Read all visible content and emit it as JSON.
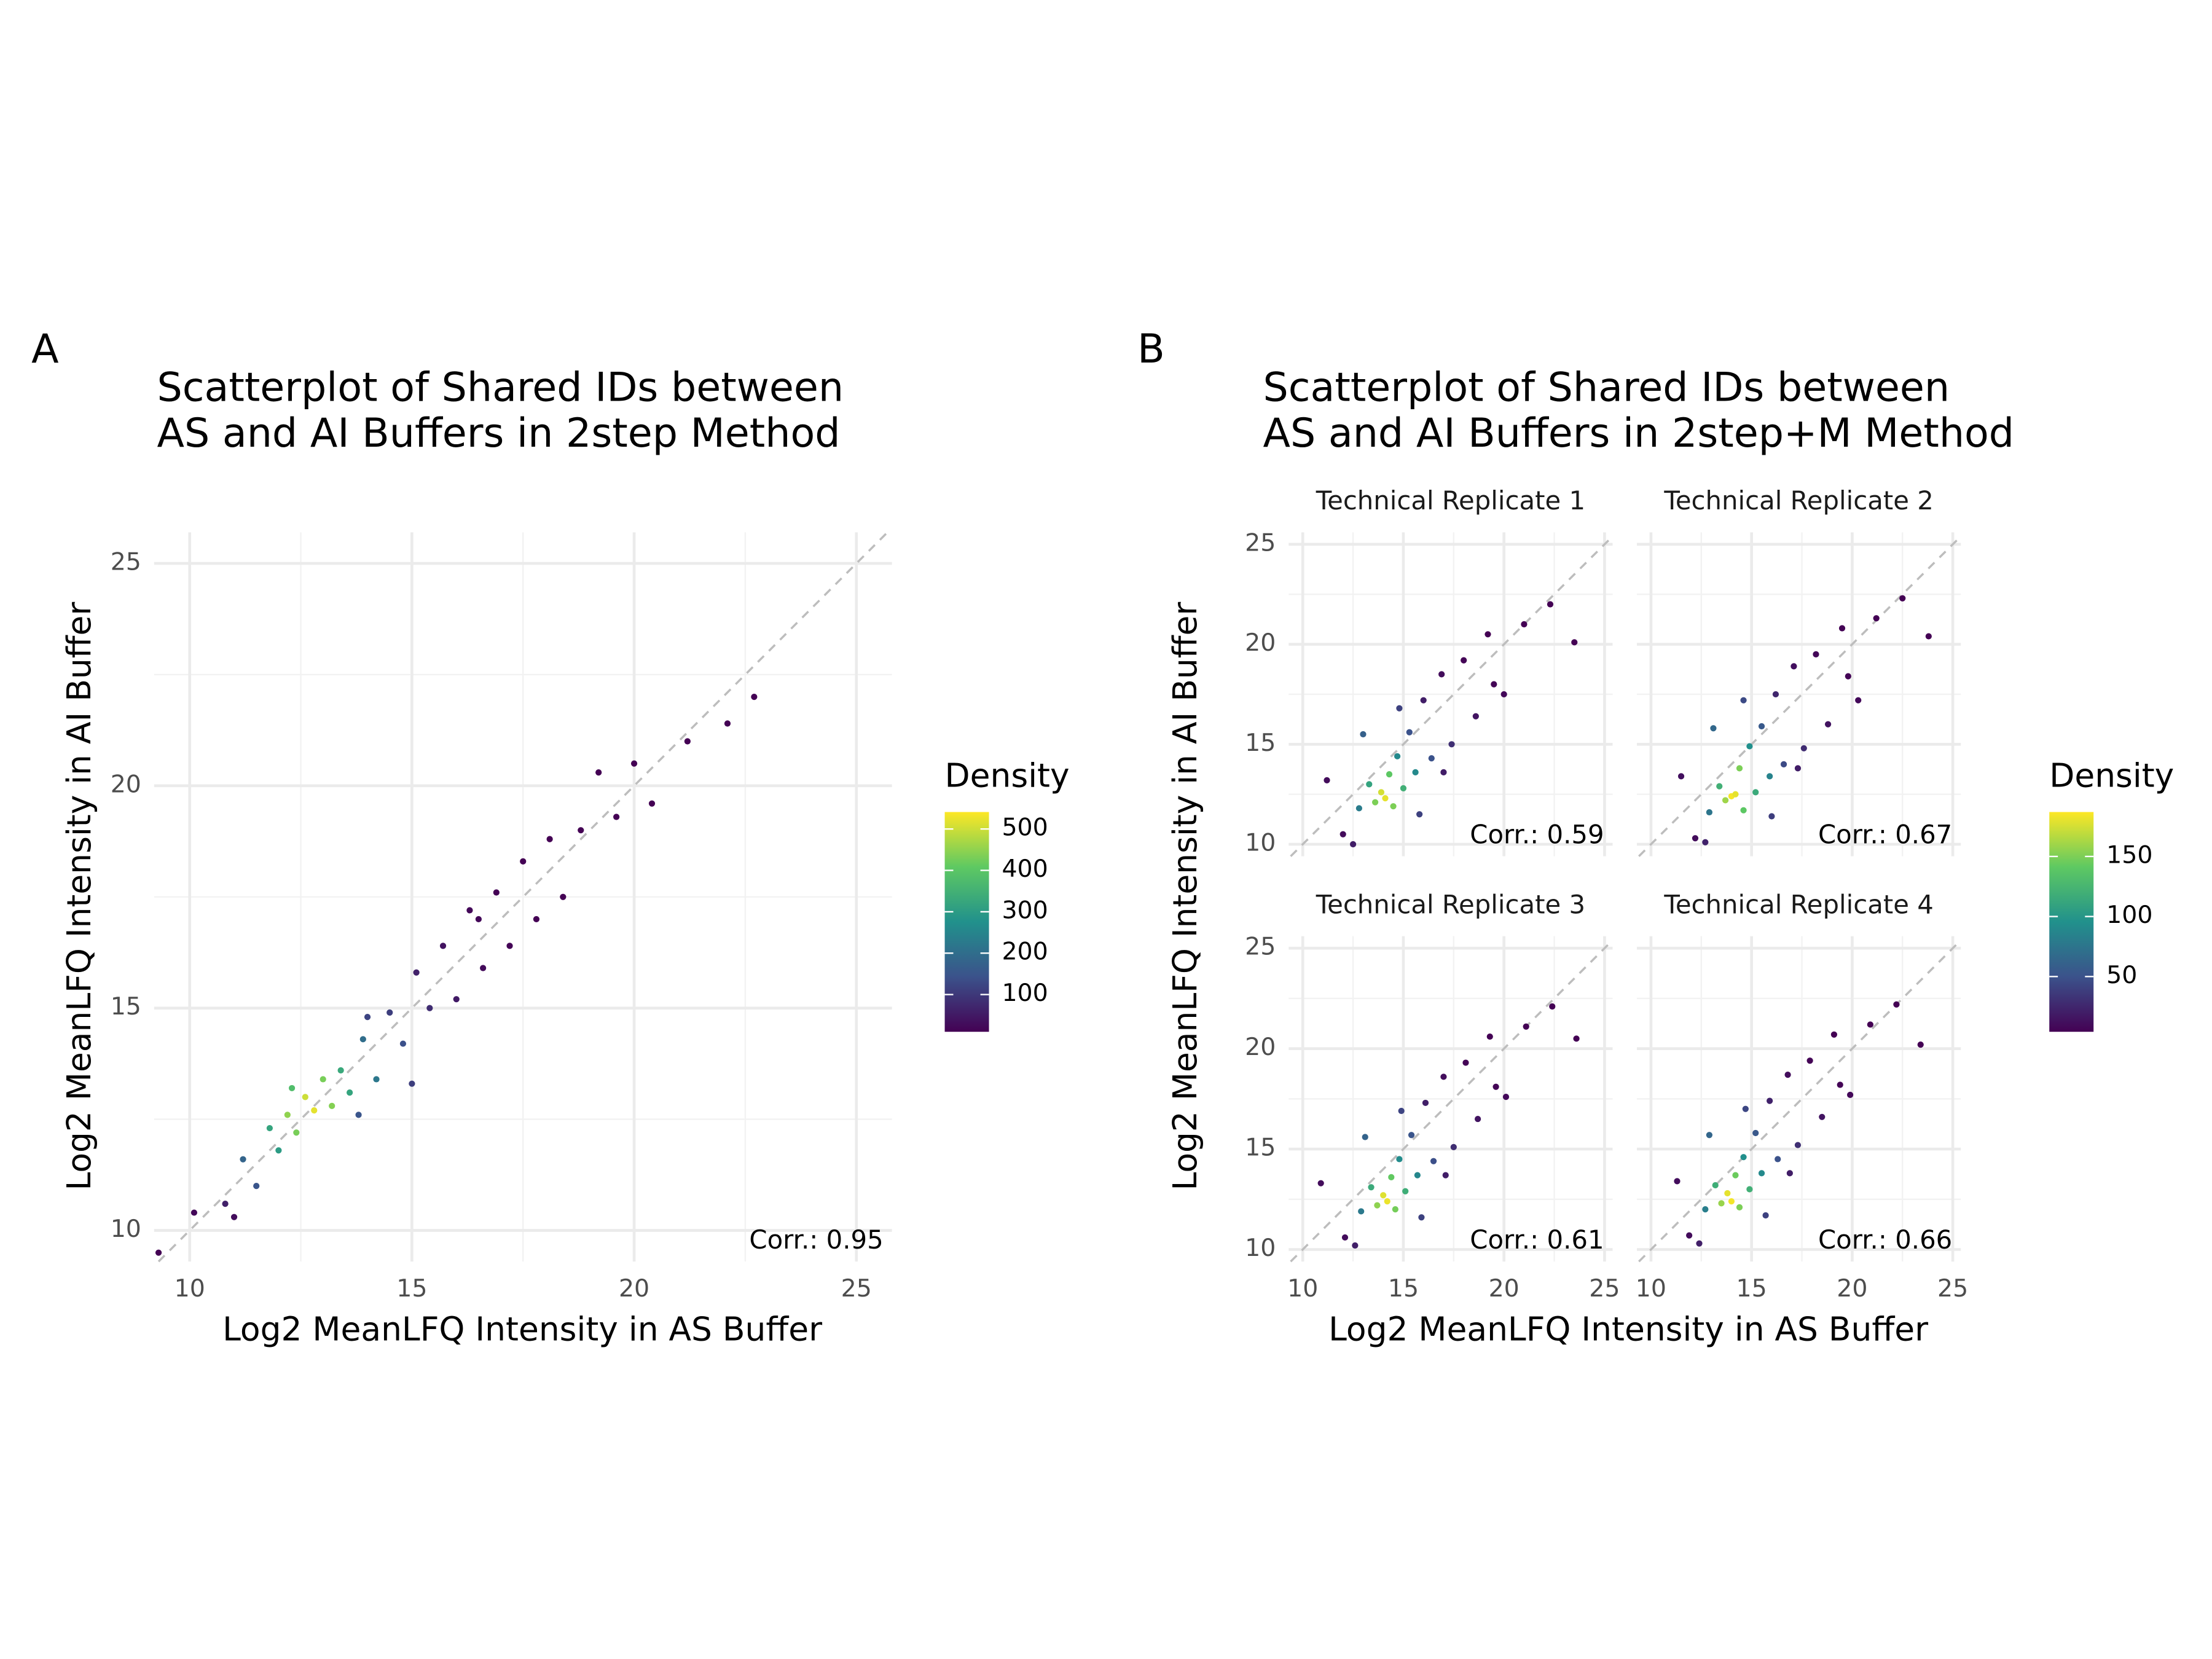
{
  "chart_data": [
    {
      "type": "scatter",
      "panel_label": "A",
      "title": [
        "Scatterplot of Shared IDs between",
        "AS and AI Buffers in 2step Method"
      ],
      "x_label": "Log2 MeanLFQ Intensity in AS Buffer",
      "y_label": "Log2 MeanLFQ Intensity in AI Buffer",
      "xlim": [
        9.2,
        25.8
      ],
      "ylim": [
        9.3,
        25.7
      ],
      "xticks": [
        10,
        15,
        20,
        25
      ],
      "yticks": [
        10,
        15,
        20,
        25
      ],
      "minor_grid": [
        12.5,
        17.5,
        22.5
      ],
      "grid": true,
      "diagonal": true,
      "legend_title": "Density",
      "colorbar_lim": [
        10,
        541
      ],
      "colorbar_ticks": [
        100,
        200,
        300,
        400,
        500
      ],
      "colormap": [
        "#440154",
        "#3b528b",
        "#21918c",
        "#5ec962",
        "#fde725"
      ],
      "annotation": "Corr.: 0.95",
      "points": {
        "x": [
          9.3,
          10.1,
          10.8,
          11.2,
          11.5,
          11.8,
          12.0,
          12.2,
          12.4,
          12.6,
          12.8,
          13.0,
          13.2,
          13.4,
          13.6,
          13.9,
          14.2,
          14.5,
          14.8,
          15.1,
          15.4,
          15.7,
          16.0,
          16.3,
          16.6,
          16.9,
          17.2,
          17.5,
          17.8,
          18.1,
          18.4,
          18.8,
          19.2,
          19.6,
          20.0,
          20.4,
          21.2,
          22.1,
          22.7,
          11.0,
          12.3,
          13.8,
          15.0,
          16.5,
          14.0
        ],
        "y": [
          9.5,
          10.4,
          10.6,
          11.6,
          11.0,
          12.3,
          11.8,
          12.6,
          12.2,
          13.0,
          12.7,
          13.4,
          12.8,
          13.6,
          13.1,
          14.3,
          13.4,
          14.9,
          14.2,
          15.8,
          15.0,
          16.4,
          15.2,
          17.2,
          15.9,
          17.6,
          16.4,
          18.3,
          17.0,
          18.8,
          17.5,
          19.0,
          20.3,
          19.3,
          20.5,
          19.6,
          21.0,
          21.4,
          22.0,
          10.3,
          13.2,
          12.6,
          13.3,
          17.0,
          14.8
        ],
        "density": [
          5,
          20,
          60,
          180,
          150,
          320,
          300,
          450,
          430,
          500,
          520,
          430,
          440,
          330,
          320,
          200,
          220,
          110,
          140,
          60,
          80,
          40,
          50,
          20,
          25,
          12,
          15,
          10,
          10,
          8,
          8,
          6,
          5,
          5,
          5,
          5,
          4,
          4,
          4,
          30,
          380,
          150,
          110,
          20,
          120
        ]
      }
    },
    {
      "type": "facet_scatter",
      "panel_label": "B",
      "title": [
        "Scatterplot of Shared IDs between",
        "AS and AI Buffers in 2step+M Method"
      ],
      "x_label": "Log2 MeanLFQ Intensity in AS Buffer",
      "y_label": "Log2 MeanLFQ Intensity in AI Buffer",
      "xlim": [
        9.3,
        25.4
      ],
      "ylim": [
        9.4,
        25.6
      ],
      "xticks": [
        10,
        15,
        20,
        25
      ],
      "yticks": [
        10,
        15,
        20,
        25
      ],
      "minor_grid": [
        12.5,
        17.5,
        22.5
      ],
      "grid": true,
      "diagonal": true,
      "legend_title": "Density",
      "colorbar_lim": [
        4,
        187
      ],
      "colorbar_ticks": [
        50,
        100,
        150
      ],
      "colormap": [
        "#440154",
        "#3b528b",
        "#21918c",
        "#5ec962",
        "#fde725"
      ],
      "facets": [
        {
          "strip": "Technical Replicate 1",
          "annotation": "Corr.: 0.59",
          "x": [
            12.0,
            12.8,
            13.3,
            13.6,
            13.9,
            14.1,
            14.3,
            14.5,
            14.7,
            15.0,
            15.3,
            15.6,
            16.0,
            16.4,
            16.9,
            17.4,
            18.0,
            18.6,
            19.2,
            20.0,
            21.0,
            22.3,
            23.5,
            11.2,
            13.0,
            15.8,
            17.0,
            14.8,
            12.5,
            19.5
          ],
          "y": [
            10.5,
            11.8,
            13.0,
            12.1,
            12.6,
            12.3,
            13.5,
            11.9,
            14.4,
            12.8,
            15.6,
            13.6,
            17.2,
            14.3,
            18.5,
            15.0,
            19.2,
            16.4,
            20.5,
            17.5,
            21.0,
            22.0,
            20.1,
            13.2,
            15.5,
            11.5,
            13.6,
            16.8,
            10.0,
            18.0
          ],
          "density": [
            10,
            80,
            110,
            150,
            175,
            180,
            140,
            150,
            90,
            120,
            50,
            90,
            20,
            50,
            10,
            30,
            6,
            15,
            4,
            8,
            4,
            3,
            3,
            10,
            60,
            40,
            20,
            40,
            20,
            6
          ]
        },
        {
          "strip": "Technical Replicate 2",
          "annotation": "Corr.: 0.67",
          "x": [
            12.2,
            12.9,
            13.4,
            13.7,
            14.0,
            14.2,
            14.4,
            14.6,
            14.9,
            15.2,
            15.5,
            15.9,
            16.2,
            16.6,
            17.1,
            17.6,
            18.2,
            18.8,
            19.5,
            20.3,
            21.2,
            22.5,
            23.8,
            11.5,
            13.1,
            16.0,
            17.3,
            14.6,
            12.7,
            19.8
          ],
          "y": [
            10.3,
            11.6,
            12.9,
            12.2,
            12.4,
            12.5,
            13.8,
            11.7,
            14.9,
            12.6,
            15.9,
            13.4,
            17.5,
            14.0,
            18.9,
            14.8,
            19.5,
            16.0,
            20.8,
            17.2,
            21.3,
            22.3,
            20.4,
            13.4,
            15.8,
            11.4,
            13.8,
            17.2,
            10.1,
            18.4
          ],
          "density": [
            10,
            75,
            120,
            160,
            185,
            180,
            150,
            140,
            95,
            115,
            55,
            85,
            25,
            45,
            12,
            28,
            7,
            14,
            5,
            8,
            4,
            3,
            3,
            12,
            65,
            38,
            20,
            45,
            22,
            6
          ]
        },
        {
          "strip": "Technical Replicate 3",
          "annotation": "Corr.: 0.61",
          "x": [
            12.1,
            12.9,
            13.4,
            13.7,
            14.0,
            14.2,
            14.4,
            14.6,
            14.8,
            15.1,
            15.4,
            15.7,
            16.1,
            16.5,
            17.0,
            17.5,
            18.1,
            18.7,
            19.3,
            20.1,
            21.1,
            22.4,
            23.6,
            10.9,
            13.1,
            15.9,
            17.1,
            14.9,
            12.6,
            19.6
          ],
          "y": [
            10.6,
            11.9,
            13.1,
            12.2,
            12.7,
            12.4,
            13.6,
            12.0,
            14.5,
            12.9,
            15.7,
            13.7,
            17.3,
            14.4,
            18.6,
            15.1,
            19.3,
            16.5,
            20.6,
            17.6,
            21.1,
            22.1,
            20.5,
            13.3,
            15.6,
            11.6,
            13.7,
            16.9,
            10.2,
            18.1
          ],
          "density": [
            10,
            78,
            115,
            155,
            178,
            182,
            142,
            148,
            92,
            118,
            52,
            88,
            21,
            48,
            11,
            29,
            6,
            15,
            4,
            8,
            4,
            3,
            3,
            10,
            62,
            40,
            20,
            42,
            21,
            6
          ]
        },
        {
          "strip": "Technical Replicate 4",
          "annotation": "Corr.: 0.66",
          "x": [
            11.9,
            12.7,
            13.2,
            13.5,
            13.8,
            14.0,
            14.2,
            14.4,
            14.6,
            14.9,
            15.2,
            15.5,
            15.9,
            16.3,
            16.8,
            17.3,
            17.9,
            18.5,
            19.1,
            19.9,
            20.9,
            22.2,
            23.4,
            11.3,
            12.9,
            15.7,
            16.9,
            14.7,
            12.4,
            19.4
          ],
          "y": [
            10.7,
            12.0,
            13.2,
            12.3,
            12.8,
            12.4,
            13.7,
            12.1,
            14.6,
            13.0,
            15.8,
            13.8,
            17.4,
            14.5,
            18.7,
            15.2,
            19.4,
            16.6,
            20.7,
            17.7,
            21.2,
            22.2,
            20.2,
            13.4,
            15.7,
            11.7,
            13.8,
            17.0,
            10.3,
            18.2
          ],
          "density": [
            10,
            82,
            118,
            158,
            180,
            184,
            145,
            150,
            94,
            120,
            54,
            90,
            22,
            50,
            11,
            30,
            6,
            15,
            4,
            8,
            4,
            3,
            3,
            11,
            64,
            40,
            20,
            43,
            21,
            6
          ]
        }
      ]
    }
  ]
}
